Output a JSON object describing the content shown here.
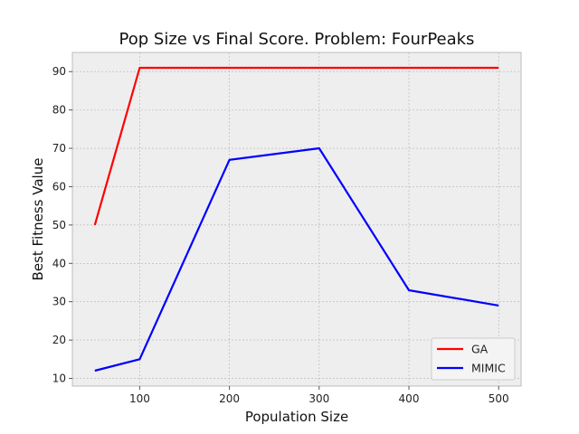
{
  "chart_data": {
    "type": "line",
    "title": "Pop Size vs Final Score.  Problem: FourPeaks",
    "xlabel": "Population Size",
    "ylabel": "Best Fitness Value",
    "xlim": [
      25,
      525
    ],
    "ylim": [
      8,
      95
    ],
    "xticks": [
      100,
      200,
      300,
      400,
      500
    ],
    "yticks": [
      10,
      20,
      30,
      40,
      50,
      60,
      70,
      80,
      90
    ],
    "grid": true,
    "legend_position": "lower-right",
    "x": [
      50,
      100,
      200,
      300,
      400,
      500
    ],
    "series": [
      {
        "name": "GA",
        "color": "#ff0000",
        "values": [
          50,
          91,
          91,
          91,
          91,
          91
        ]
      },
      {
        "name": "MIMIC",
        "color": "#0000ff",
        "values": [
          12,
          15,
          67,
          70,
          33,
          29
        ]
      }
    ]
  }
}
